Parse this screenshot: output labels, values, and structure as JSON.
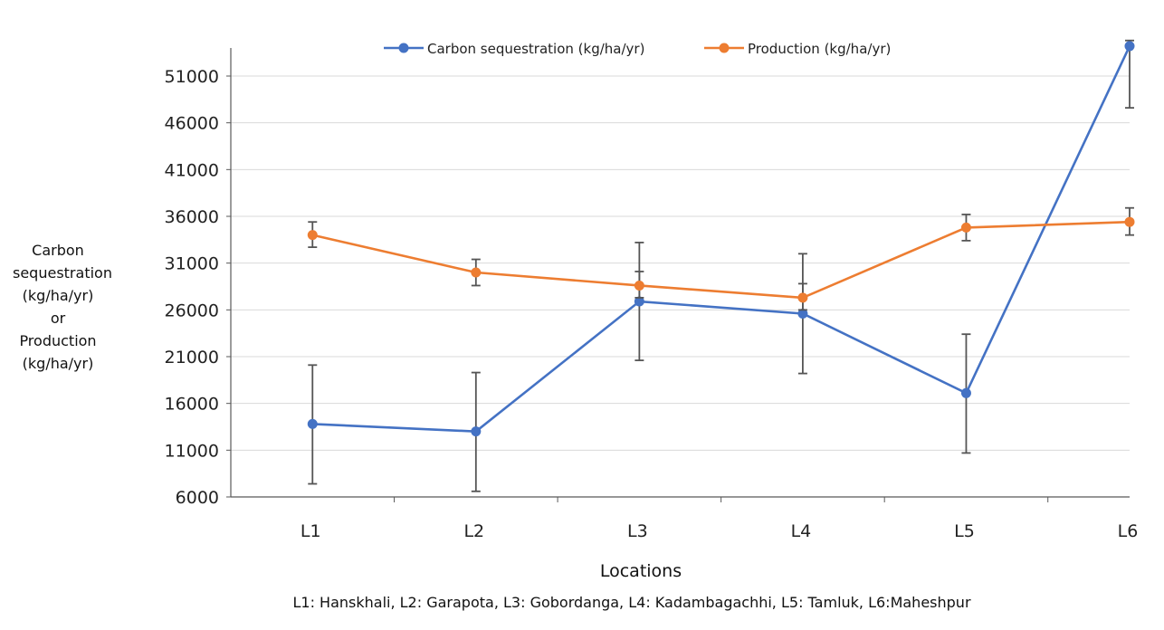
{
  "chart_data": {
    "type": "line",
    "categories": [
      "L1",
      "L2",
      "L3",
      "L4",
      "L5",
      "L6"
    ],
    "ylabel": "Carbon sequestration (kg/ha/yr) or Production (kg/ha/yr)",
    "xlabel": "Locations",
    "caption": "L1: Hanskhali, L2: Garapota, L3: Gobordanga, L4: Kadambagachhi, L5: Tamluk, L6:Maheshpur",
    "ylim": [
      6000,
      54000
    ],
    "yticks": [
      6000,
      11000,
      16000,
      21000,
      26000,
      31000,
      36000,
      41000,
      46000,
      51000
    ],
    "grid": true,
    "legend_position": "top",
    "series": [
      {
        "name": "Carbon sequestration (kg/ha/yr)",
        "color": "#4472C4",
        "values": [
          13800,
          13000,
          26900,
          25600,
          17100,
          54200
        ],
        "error_low": [
          7400,
          6600,
          20600,
          19200,
          10700,
          47600
        ],
        "error_high": [
          20100,
          19300,
          33200,
          32000,
          23400,
          54800
        ]
      },
      {
        "name": "Production (kg/ha/yr)",
        "color": "#ED7D31",
        "values": [
          34000,
          30000,
          28600,
          27300,
          34800,
          35400
        ],
        "error_low": [
          32700,
          28600,
          27300,
          26000,
          33400,
          34000
        ],
        "error_high": [
          35400,
          31400,
          30100,
          28800,
          36200,
          36900
        ]
      }
    ]
  }
}
